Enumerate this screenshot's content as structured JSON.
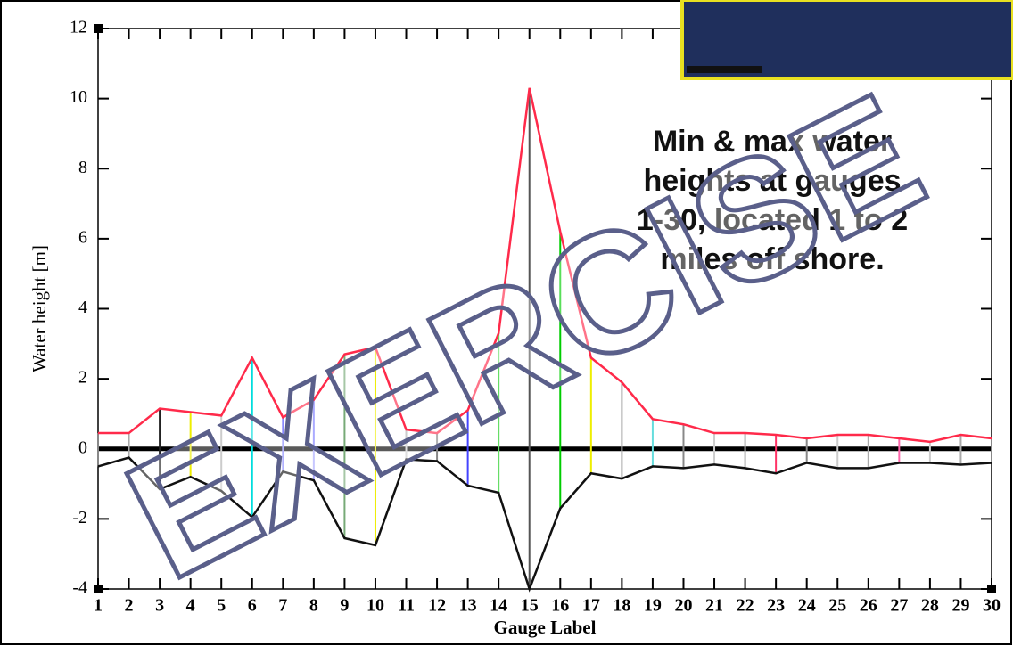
{
  "chart_data": {
    "type": "line",
    "annotation": [
      "Min & max water",
      "heights at gauges",
      "1-30, located 1 to 2",
      "miles off shore."
    ],
    "watermark": "EXERCISE",
    "x_label": "Gauge Label",
    "y_label": "Water height [m]",
    "x": [
      1,
      2,
      3,
      4,
      5,
      6,
      7,
      8,
      9,
      10,
      11,
      12,
      13,
      14,
      15,
      16,
      17,
      18,
      19,
      20,
      21,
      22,
      23,
      24,
      25,
      26,
      27,
      28,
      29,
      30
    ],
    "series": [
      {
        "color": "#ff2a4a",
        "values": [
          0.45,
          0.45,
          1.15,
          1.05,
          0.95,
          2.6,
          0.9,
          1.4,
          2.7,
          2.9,
          0.55,
          0.45,
          1.1,
          3.3,
          10.3,
          6.2,
          2.6,
          1.9,
          0.85,
          0.7,
          0.45,
          0.45,
          0.4,
          0.3,
          0.4,
          0.4,
          0.3,
          0.2,
          0.4,
          0.3
        ]
      },
      {
        "color": "#111111",
        "values": [
          -0.5,
          -0.25,
          -1.15,
          -0.8,
          -1.2,
          -1.95,
          -0.65,
          -0.9,
          -2.55,
          -2.75,
          -0.3,
          -0.35,
          -1.05,
          -1.25,
          -4,
          -1.7,
          -0.7,
          -0.85,
          -0.5,
          -0.55,
          -0.45,
          -0.55,
          -0.7,
          -0.4,
          -0.55,
          -0.55,
          -0.4,
          -0.4,
          -0.45,
          -0.4
        ]
      }
    ],
    "range_colors": [
      "#888",
      "#aaa",
      "#222",
      "#ee0",
      "#ccc",
      "#0dd",
      "#88f",
      "#aaf",
      "#7a7",
      "#ee0",
      "#ccc",
      "#888",
      "#44f",
      "#6d6",
      "#555",
      "#0c0",
      "#ee0",
      "#aaa",
      "#6dd",
      "#888",
      "#ccc",
      "#aaa",
      "#f36",
      "#888",
      "#ccc",
      "#aaa",
      "#f6a",
      "#ccc",
      "#aaa",
      "#888"
    ],
    "xlim": [
      1,
      30
    ],
    "xticks": [
      1,
      2,
      3,
      4,
      5,
      6,
      7,
      8,
      9,
      10,
      11,
      12,
      13,
      14,
      15,
      16,
      17,
      18,
      19,
      20,
      21,
      22,
      23,
      24,
      25,
      26,
      27,
      28,
      29,
      30
    ],
    "ylim": [
      -4,
      12
    ],
    "yticks": [
      -4,
      -2,
      0,
      2,
      4,
      6,
      8,
      10,
      12
    ]
  }
}
